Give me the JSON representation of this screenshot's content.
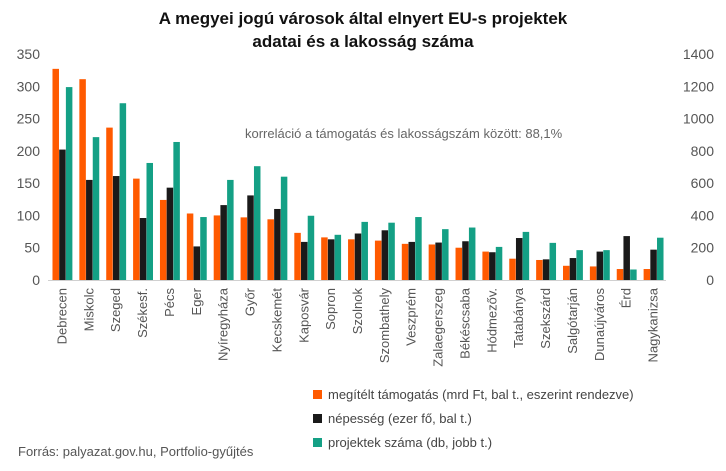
{
  "chart_data": {
    "type": "bar",
    "title_lines": [
      "A megyei jogú városok által elnyert EU-s projektek",
      "adatai és a lakosság száma"
    ],
    "categories": [
      "Debrecen",
      "Miskolc",
      "Szeged",
      "Székesf.",
      "Pécs",
      "Eger",
      "Nyíregyháza",
      "Győr",
      "Kecskemét",
      "Kaposvár",
      "Sopron",
      "Szolnok",
      "Szombathely",
      "Veszprém",
      "Zalaegerszeg",
      "Békéscsaba",
      "Hódmezőv.",
      "Tatabánya",
      "Szekszárd",
      "Salgótarján",
      "Dunaújváros",
      "Érd",
      "Nagykanizsa"
    ],
    "series": [
      {
        "name": "megítélt támogatás (mrd Ft, bal t., eszerint rendezve)",
        "axis": "left",
        "color": "#ff5a00",
        "values": [
          327,
          311,
          236,
          157,
          124,
          103,
          100,
          97,
          94,
          73,
          66,
          63,
          61,
          56,
          55,
          50,
          44,
          33,
          31,
          22,
          21,
          17,
          17
        ]
      },
      {
        "name": "népesség (ezer fő, bal t.)",
        "axis": "left",
        "color": "#1a1a1a",
        "values": [
          202,
          155,
          161,
          96,
          143,
          52,
          116,
          131,
          110,
          59,
          63,
          72,
          77,
          59,
          58,
          60,
          43,
          65,
          32,
          34,
          44,
          68,
          47
        ]
      },
      {
        "name": "projektek száma (db, jobb t.)",
        "axis": "right",
        "color": "#14a085",
        "values": [
          1195,
          885,
          1095,
          725,
          855,
          390,
          620,
          705,
          640,
          398,
          280,
          360,
          355,
          390,
          315,
          325,
          205,
          298,
          230,
          185,
          185,
          65,
          262
        ]
      }
    ],
    "left_axis": {
      "ylim": [
        0,
        350
      ],
      "ticks": [
        0,
        50,
        100,
        150,
        200,
        250,
        300,
        350
      ]
    },
    "right_axis": {
      "ylim": [
        0,
        1400
      ],
      "ticks": [
        0,
        200,
        400,
        600,
        800,
        1000,
        1200,
        1400
      ]
    },
    "grid": false,
    "annotation": "korreláció a támogatás és lakosságszám között: 88,1%",
    "legend_position": "bottom-right",
    "source": "Forrás: palyazat.gov.hu, Portfolio-gyűjtés"
  }
}
